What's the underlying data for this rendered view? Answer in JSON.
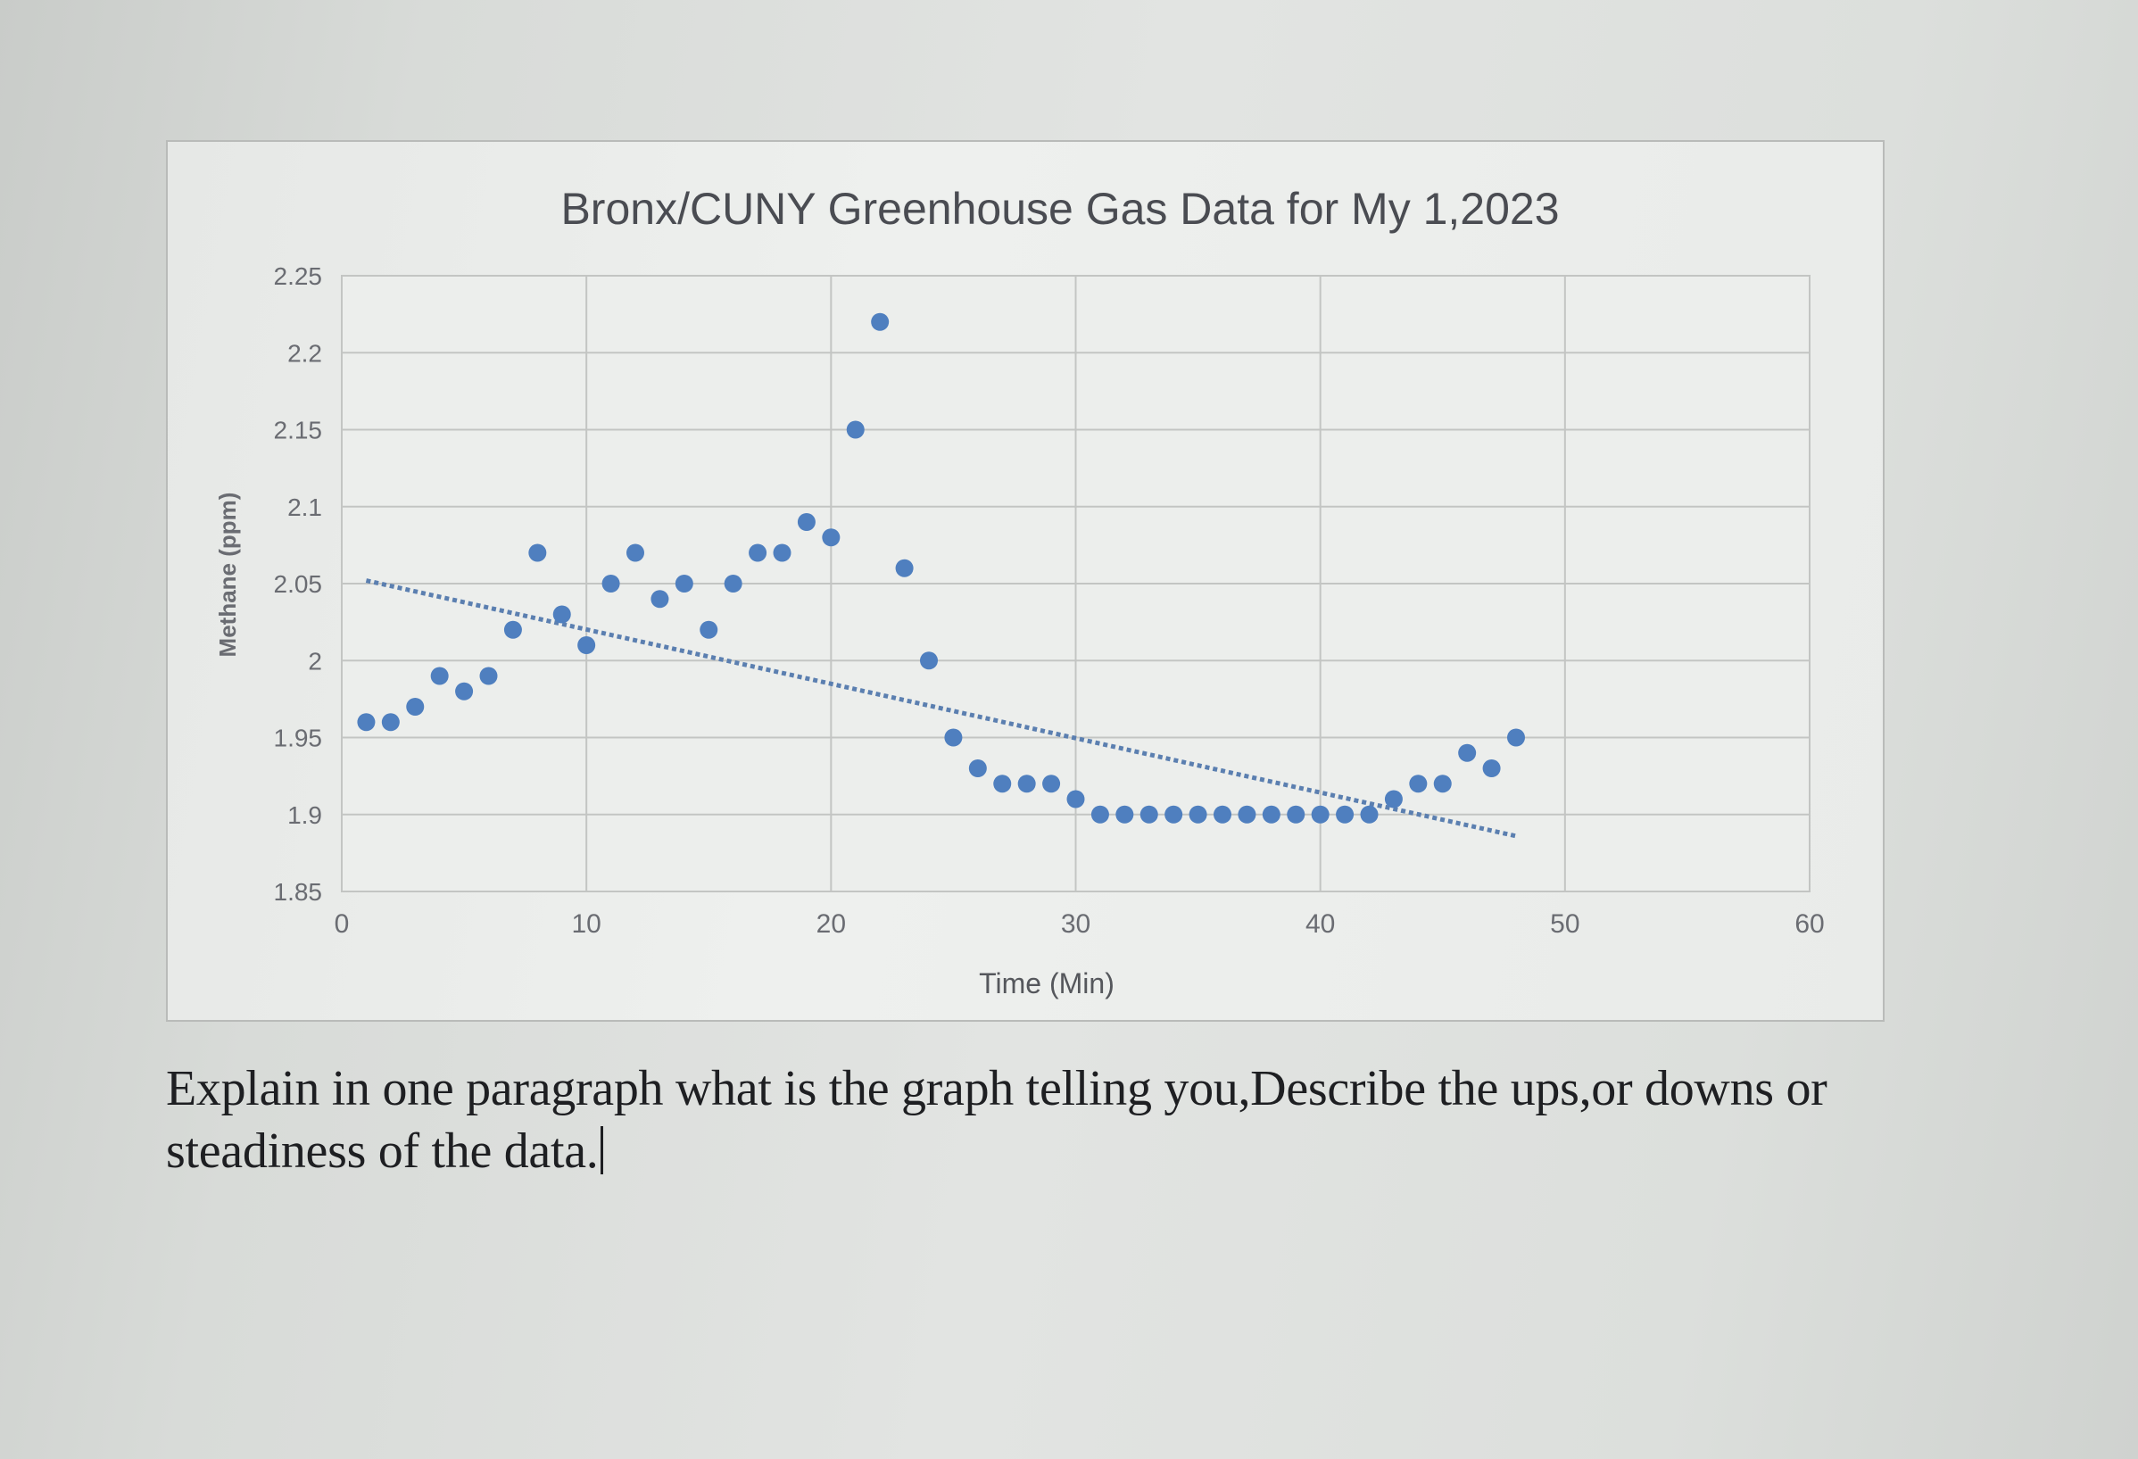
{
  "chart_data": {
    "type": "scatter",
    "title": "Bronx/CUNY Greenhouse Gas Data for My 1,2023",
    "xlabel": "Time (Min)",
    "ylabel": "Methane (ppm)",
    "xlim": [
      0,
      60
    ],
    "ylim": [
      1.85,
      2.25
    ],
    "x_ticks": [
      0,
      10,
      20,
      30,
      40,
      50,
      60
    ],
    "y_ticks": [
      1.85,
      1.9,
      1.95,
      2,
      2.05,
      2.1,
      2.15,
      2.2,
      2.25
    ],
    "x_tick_labels": [
      "0",
      "10",
      "20",
      "30",
      "40",
      "50",
      "60"
    ],
    "y_tick_labels": [
      "1.85",
      "1.9",
      "1.95",
      "2",
      "2.05",
      "2.1",
      "2.15",
      "2.2",
      "2.25"
    ],
    "grid": true,
    "legend": "none",
    "marker_color": "#4f7fbf",
    "trendline": {
      "type": "linear",
      "from": [
        1,
        2.052
      ],
      "to": [
        48,
        1.886
      ],
      "color": "#5b7fb0"
    },
    "series": [
      {
        "points": [
          [
            1,
            1.96
          ],
          [
            2,
            1.96
          ],
          [
            3,
            1.97
          ],
          [
            4,
            1.99
          ],
          [
            5,
            1.98
          ],
          [
            6,
            1.99
          ],
          [
            7,
            2.02
          ],
          [
            8,
            2.07
          ],
          [
            9,
            2.03
          ],
          [
            10,
            2.01
          ],
          [
            11,
            2.05
          ],
          [
            12,
            2.07
          ],
          [
            13,
            2.04
          ],
          [
            14,
            2.05
          ],
          [
            15,
            2.02
          ],
          [
            16,
            2.05
          ],
          [
            17,
            2.07
          ],
          [
            18,
            2.07
          ],
          [
            19,
            2.09
          ],
          [
            20,
            2.08
          ],
          [
            21,
            2.15
          ],
          [
            22,
            2.22
          ],
          [
            23,
            2.06
          ],
          [
            24,
            2.0
          ],
          [
            25,
            1.95
          ],
          [
            26,
            1.93
          ],
          [
            27,
            1.92
          ],
          [
            28,
            1.92
          ],
          [
            29,
            1.92
          ],
          [
            30,
            1.91
          ],
          [
            31,
            1.9
          ],
          [
            32,
            1.9
          ],
          [
            33,
            1.9
          ],
          [
            34,
            1.9
          ],
          [
            35,
            1.9
          ],
          [
            36,
            1.9
          ],
          [
            37,
            1.9
          ],
          [
            38,
            1.9
          ],
          [
            39,
            1.9
          ],
          [
            40,
            1.9
          ],
          [
            41,
            1.9
          ],
          [
            42,
            1.9
          ],
          [
            43,
            1.91
          ],
          [
            44,
            1.92
          ],
          [
            45,
            1.92
          ],
          [
            46,
            1.94
          ],
          [
            47,
            1.93
          ],
          [
            48,
            1.95
          ]
        ]
      }
    ]
  },
  "question": {
    "text": "Explain in one paragraph what is the graph telling you,Describe the ups,or downs or steadiness of the data."
  }
}
